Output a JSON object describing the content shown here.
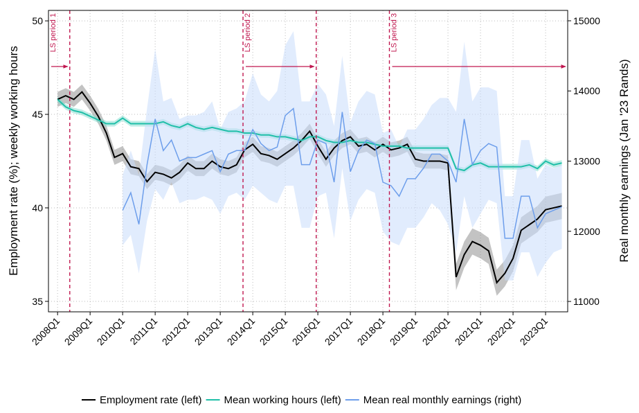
{
  "chart_data": {
    "type": "line",
    "ylabel": "Employment rate (%); weekly working hours",
    "y2label": "Real monthly earnings (Jan '23 Rands)",
    "x": [
      2008,
      2008.25,
      2008.5,
      2008.75,
      2009,
      2009.25,
      2009.5,
      2009.75,
      2010,
      2010.25,
      2010.5,
      2010.75,
      2011,
      2011.25,
      2011.5,
      2011.75,
      2012,
      2012.25,
      2012.5,
      2012.75,
      2013,
      2013.25,
      2013.5,
      2013.75,
      2014,
      2014.25,
      2014.5,
      2014.75,
      2015,
      2015.25,
      2015.5,
      2015.75,
      2016,
      2016.25,
      2016.5,
      2016.75,
      2017,
      2017.25,
      2017.5,
      2017.75,
      2018,
      2018.25,
      2018.5,
      2018.75,
      2019,
      2019.25,
      2019.5,
      2019.75,
      2020,
      2020.25,
      2020.5,
      2020.75,
      2021,
      2021.25,
      2021.5,
      2021.75,
      2022,
      2022.25,
      2022.5,
      2022.75,
      2023,
      2023.25,
      2023.5
    ],
    "xlim": [
      2007.72,
      2023.68
    ],
    "xticks": [
      {
        "value": 2008,
        "label": "2008Q1"
      },
      {
        "value": 2009,
        "label": "2009Q1"
      },
      {
        "value": 2010,
        "label": "2010Q1"
      },
      {
        "value": 2011,
        "label": "2011Q1"
      },
      {
        "value": 2012,
        "label": "2012Q1"
      },
      {
        "value": 2013,
        "label": "2013Q1"
      },
      {
        "value": 2014,
        "label": "2014Q1"
      },
      {
        "value": 2015,
        "label": "2015Q1"
      },
      {
        "value": 2016,
        "label": "2016Q1"
      },
      {
        "value": 2017,
        "label": "2017Q1"
      },
      {
        "value": 2018,
        "label": "2018Q1"
      },
      {
        "value": 2019,
        "label": "2019Q1"
      },
      {
        "value": 2020,
        "label": "2020Q1"
      },
      {
        "value": 2021,
        "label": "2021Q1"
      },
      {
        "value": 2022,
        "label": "2022Q1"
      },
      {
        "value": 2023,
        "label": "2023Q1"
      }
    ],
    "ylim": [
      34.44,
      50.56
    ],
    "yticks": [
      35,
      40,
      45,
      50
    ],
    "y2lim": [
      10852,
      15148
    ],
    "y2ticks": [
      11000,
      12000,
      13000,
      14000,
      15000
    ],
    "grid": true,
    "vlines": [
      2008.375,
      2013.7,
      2015.95,
      2018.2
    ],
    "period_labels": [
      "LS period 1",
      "LS period 2",
      "LS period 3"
    ],
    "series": [
      {
        "name": "Employment rate (left)",
        "color": "#000000",
        "band_color": "#888888",
        "axis": "y",
        "values": [
          45.8,
          46.0,
          45.8,
          46.2,
          45.6,
          44.9,
          44.0,
          42.7,
          42.9,
          42.2,
          42.1,
          41.4,
          41.9,
          41.8,
          41.6,
          41.9,
          42.4,
          42.1,
          42.1,
          42.5,
          42.2,
          42.1,
          42.3,
          43.1,
          43.4,
          42.9,
          42.8,
          42.6,
          42.9,
          43.2,
          43.6,
          44.1,
          43.3,
          42.6,
          43.2,
          43.6,
          43.8,
          43.3,
          43.4,
          43.1,
          43.4,
          43.1,
          43.2,
          43.4,
          42.6,
          42.5,
          42.5,
          42.5,
          42.4,
          36.3,
          37.5,
          38.2,
          38.0,
          37.7,
          36.0,
          36.5,
          37.3,
          38.8,
          39.1,
          39.4,
          39.9,
          40.0,
          40.1
        ],
        "ci": [
          0.4,
          0.4,
          0.4,
          0.4,
          0.4,
          0.4,
          0.4,
          0.4,
          0.4,
          0.4,
          0.4,
          0.4,
          0.4,
          0.4,
          0.4,
          0.4,
          0.4,
          0.4,
          0.4,
          0.4,
          0.4,
          0.4,
          0.4,
          0.4,
          0.4,
          0.4,
          0.4,
          0.4,
          0.4,
          0.4,
          0.4,
          0.4,
          0.4,
          0.4,
          0.4,
          0.4,
          0.4,
          0.4,
          0.4,
          0.4,
          0.4,
          0.4,
          0.4,
          0.4,
          0.4,
          0.4,
          0.4,
          0.4,
          0.4,
          0.7,
          0.7,
          0.7,
          0.7,
          0.7,
          0.7,
          0.7,
          0.7,
          0.7,
          0.7,
          0.7,
          0.7,
          0.7,
          0.7
        ]
      },
      {
        "name": "Mean working hours (left)",
        "color": "#1fbfa8",
        "band_color": "#7fdccd",
        "axis": "y",
        "values": [
          45.8,
          45.4,
          45.2,
          45.1,
          44.9,
          44.7,
          44.5,
          44.5,
          44.8,
          44.5,
          44.5,
          44.5,
          44.5,
          44.6,
          44.4,
          44.3,
          44.5,
          44.3,
          44.2,
          44.3,
          44.2,
          44.1,
          44.1,
          44.0,
          44.0,
          43.9,
          43.9,
          43.8,
          43.8,
          43.7,
          43.6,
          43.8,
          43.8,
          43.6,
          43.5,
          43.5,
          43.6,
          43.5,
          43.5,
          43.4,
          43.3,
          43.3,
          43.3,
          43.2,
          43.2,
          43.2,
          43.2,
          43.2,
          43.2,
          42.1,
          42.0,
          42.3,
          42.4,
          42.2,
          42.2,
          42.2,
          42.2,
          42.2,
          42.3,
          42.1,
          42.5,
          42.3,
          42.4
        ],
        "ci": [
          0.15,
          0.15,
          0.15,
          0.15,
          0.15,
          0.15,
          0.15,
          0.15,
          0.15,
          0.15,
          0.15,
          0.15,
          0.15,
          0.15,
          0.15,
          0.15,
          0.15,
          0.15,
          0.15,
          0.15,
          0.15,
          0.15,
          0.15,
          0.15,
          0.15,
          0.15,
          0.15,
          0.15,
          0.15,
          0.15,
          0.15,
          0.15,
          0.15,
          0.15,
          0.15,
          0.15,
          0.15,
          0.15,
          0.15,
          0.15,
          0.15,
          0.15,
          0.15,
          0.15,
          0.15,
          0.15,
          0.15,
          0.15,
          0.15,
          0.15,
          0.15,
          0.15,
          0.15,
          0.15,
          0.15,
          0.15,
          0.15,
          0.15,
          0.15,
          0.15,
          0.15,
          0.15,
          0.15
        ]
      },
      {
        "name": "Mean real monthly earnings (right)",
        "color": "#6d9eeb",
        "band_color": "#c9dcfb",
        "axis": "y2",
        "values": [
          null,
          null,
          null,
          null,
          null,
          null,
          null,
          null,
          12300,
          12550,
          12100,
          12950,
          13600,
          13150,
          13300,
          13000,
          13050,
          13050,
          13100,
          13150,
          12850,
          13100,
          13150,
          13150,
          13450,
          13250,
          13150,
          13200,
          13650,
          13750,
          12950,
          12950,
          13300,
          13250,
          12700,
          13700,
          12850,
          13150,
          13300,
          13250,
          12700,
          12650,
          12500,
          12750,
          12750,
          12900,
          13100,
          13100,
          13000,
          12700,
          13600,
          12950,
          13150,
          13250,
          13200,
          11900,
          11900,
          12500,
          12500,
          12050,
          12250,
          12300,
          12350
        ],
        "ci": [
          null,
          null,
          null,
          null,
          null,
          null,
          null,
          null,
          500,
          600,
          700,
          800,
          1000,
          700,
          600,
          600,
          600,
          600,
          600,
          700,
          600,
          600,
          600,
          700,
          800,
          700,
          700,
          800,
          1000,
          1100,
          900,
          900,
          800,
          700,
          800,
          800,
          700,
          700,
          700,
          700,
          700,
          800,
          700,
          700,
          700,
          700,
          700,
          800,
          900,
          1000,
          1100,
          900,
          900,
          800,
          800,
          600,
          600,
          800,
          800,
          700,
          700,
          600,
          600
        ]
      }
    ]
  }
}
